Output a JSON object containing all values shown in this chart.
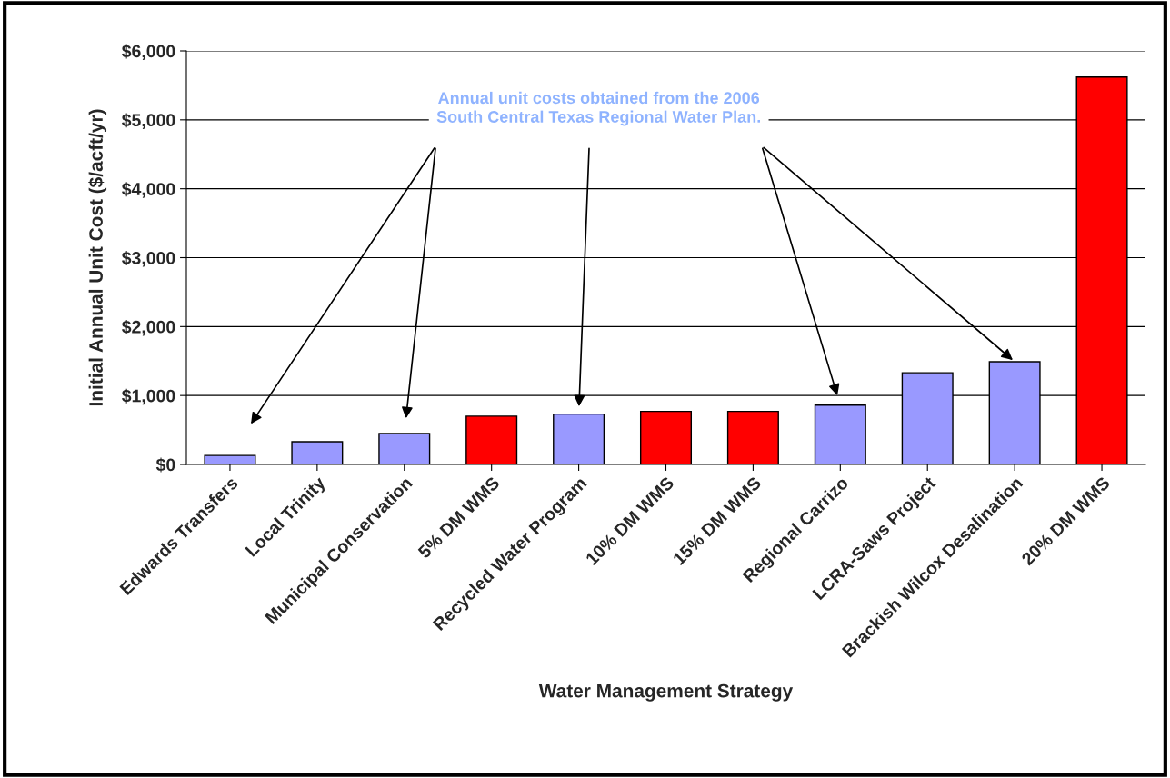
{
  "chart_data": {
    "type": "bar",
    "xlabel": "Water Management Strategy",
    "ylabel": "Initial Annual Unit Cost ($/acft/yr)",
    "categories": [
      "Edwards Transfers",
      "Local Trinity",
      "Municipal Conservation",
      "5% DM WMS",
      "Recycled Water Program",
      "10% DM WMS",
      "15% DM WMS",
      "Regional Carrizo",
      "LCRA-Saws Project",
      "Brackish Wilcox Desalination",
      "20% DM WMS"
    ],
    "values": [
      130,
      330,
      450,
      700,
      730,
      770,
      770,
      860,
      1330,
      1490,
      5620
    ],
    "colors": [
      "#9999ff",
      "#9999ff",
      "#9999ff",
      "#ff0000",
      "#9999ff",
      "#ff0000",
      "#ff0000",
      "#9999ff",
      "#9999ff",
      "#9999ff",
      "#ff0000"
    ],
    "ylim": [
      0,
      6000
    ],
    "yticks": [
      {
        "value": 0,
        "label": "$0"
      },
      {
        "value": 1000,
        "label": "$1,000"
      },
      {
        "value": 2000,
        "label": "$2,000"
      },
      {
        "value": 3000,
        "label": "$3,000"
      },
      {
        "value": 4000,
        "label": "$4,000"
      },
      {
        "value": 5000,
        "label": "$5,000"
      },
      {
        "value": 6000,
        "label": "$6,000"
      }
    ],
    "grid": "y",
    "legend": false,
    "annotations": [
      "Annual unit costs obtained from the 2006\nSouth Central Texas Regional Water Plan."
    ]
  }
}
